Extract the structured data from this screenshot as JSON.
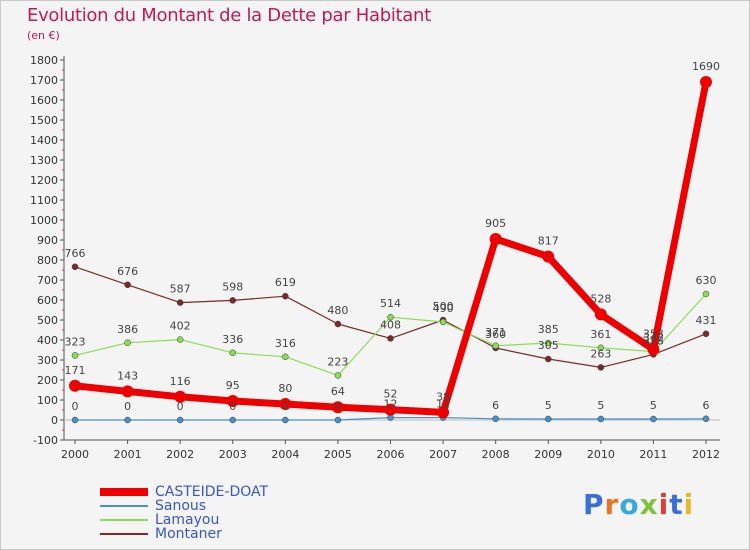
{
  "title": "Evolution du Montant de la Dette par Habitant",
  "subtitle": "(en €)",
  "logo": {
    "text": "Proxiti",
    "colors": [
      "#3a6fd8",
      "#e8732a",
      "#3aa8e0",
      "#7fc241",
      "#e03a3a",
      "#3a6fd8",
      "#e8b72a"
    ]
  },
  "chart_data": {
    "type": "line",
    "title": "Evolution du Montant de la Dette par Habitant",
    "ylabel": "(en €)",
    "xlabel": "",
    "x": [
      "2000",
      "2001",
      "2002",
      "2003",
      "2004",
      "2005",
      "2006",
      "2007",
      "2008",
      "2009",
      "2010",
      "2011",
      "2012"
    ],
    "yticks": [
      "-100",
      "0",
      "100",
      "200",
      "300",
      "400",
      "500",
      "600",
      "700",
      "800",
      "900",
      "1000",
      "1100",
      "1200",
      "1300",
      "1400",
      "1500",
      "1600",
      "1700",
      "1800"
    ],
    "ylim": [
      -100,
      1800
    ],
    "grid": false,
    "legend_position": "bottom-left",
    "series": [
      {
        "name": "CASTEIDE-DOAT",
        "color": "#ee0000",
        "values": [
          171,
          143,
          116,
          95,
          80,
          64,
          52,
          38,
          905,
          817,
          528,
          353,
          1690
        ],
        "labels": [
          "171",
          "143",
          "116",
          "95",
          "80",
          "64",
          "52",
          "38",
          "905",
          "817",
          "528",
          "353",
          "1690"
        ]
      },
      {
        "name": "Sanous",
        "color": "#4a90c8",
        "values": [
          0,
          0,
          0,
          0,
          0,
          0,
          12,
          12,
          6,
          5,
          5,
          5,
          6
        ],
        "labels": [
          "0",
          "0",
          "0",
          "0",
          "0",
          "0",
          "12",
          "12",
          "6",
          "5",
          "5",
          "5",
          "6"
        ]
      },
      {
        "name": "Lamayou",
        "color": "#88dd55",
        "values": [
          323,
          386,
          402,
          336,
          316,
          223,
          514,
          490,
          371,
          385,
          361,
          342,
          630
        ],
        "labels": [
          "323",
          "386",
          "402",
          "336",
          "316",
          "223",
          "514",
          "490",
          "371",
          "385",
          "361",
          "342",
          "630"
        ]
      },
      {
        "name": "Montaner",
        "color": "#7a2a2a",
        "values": [
          766,
          676,
          587,
          598,
          619,
          480,
          408,
          500,
          360,
          305,
          263,
          328,
          431
        ],
        "labels": [
          "766",
          "676",
          "587",
          "598",
          "619",
          "480",
          "408",
          "500",
          "360",
          "305",
          "263",
          "328",
          "431"
        ]
      }
    ]
  }
}
